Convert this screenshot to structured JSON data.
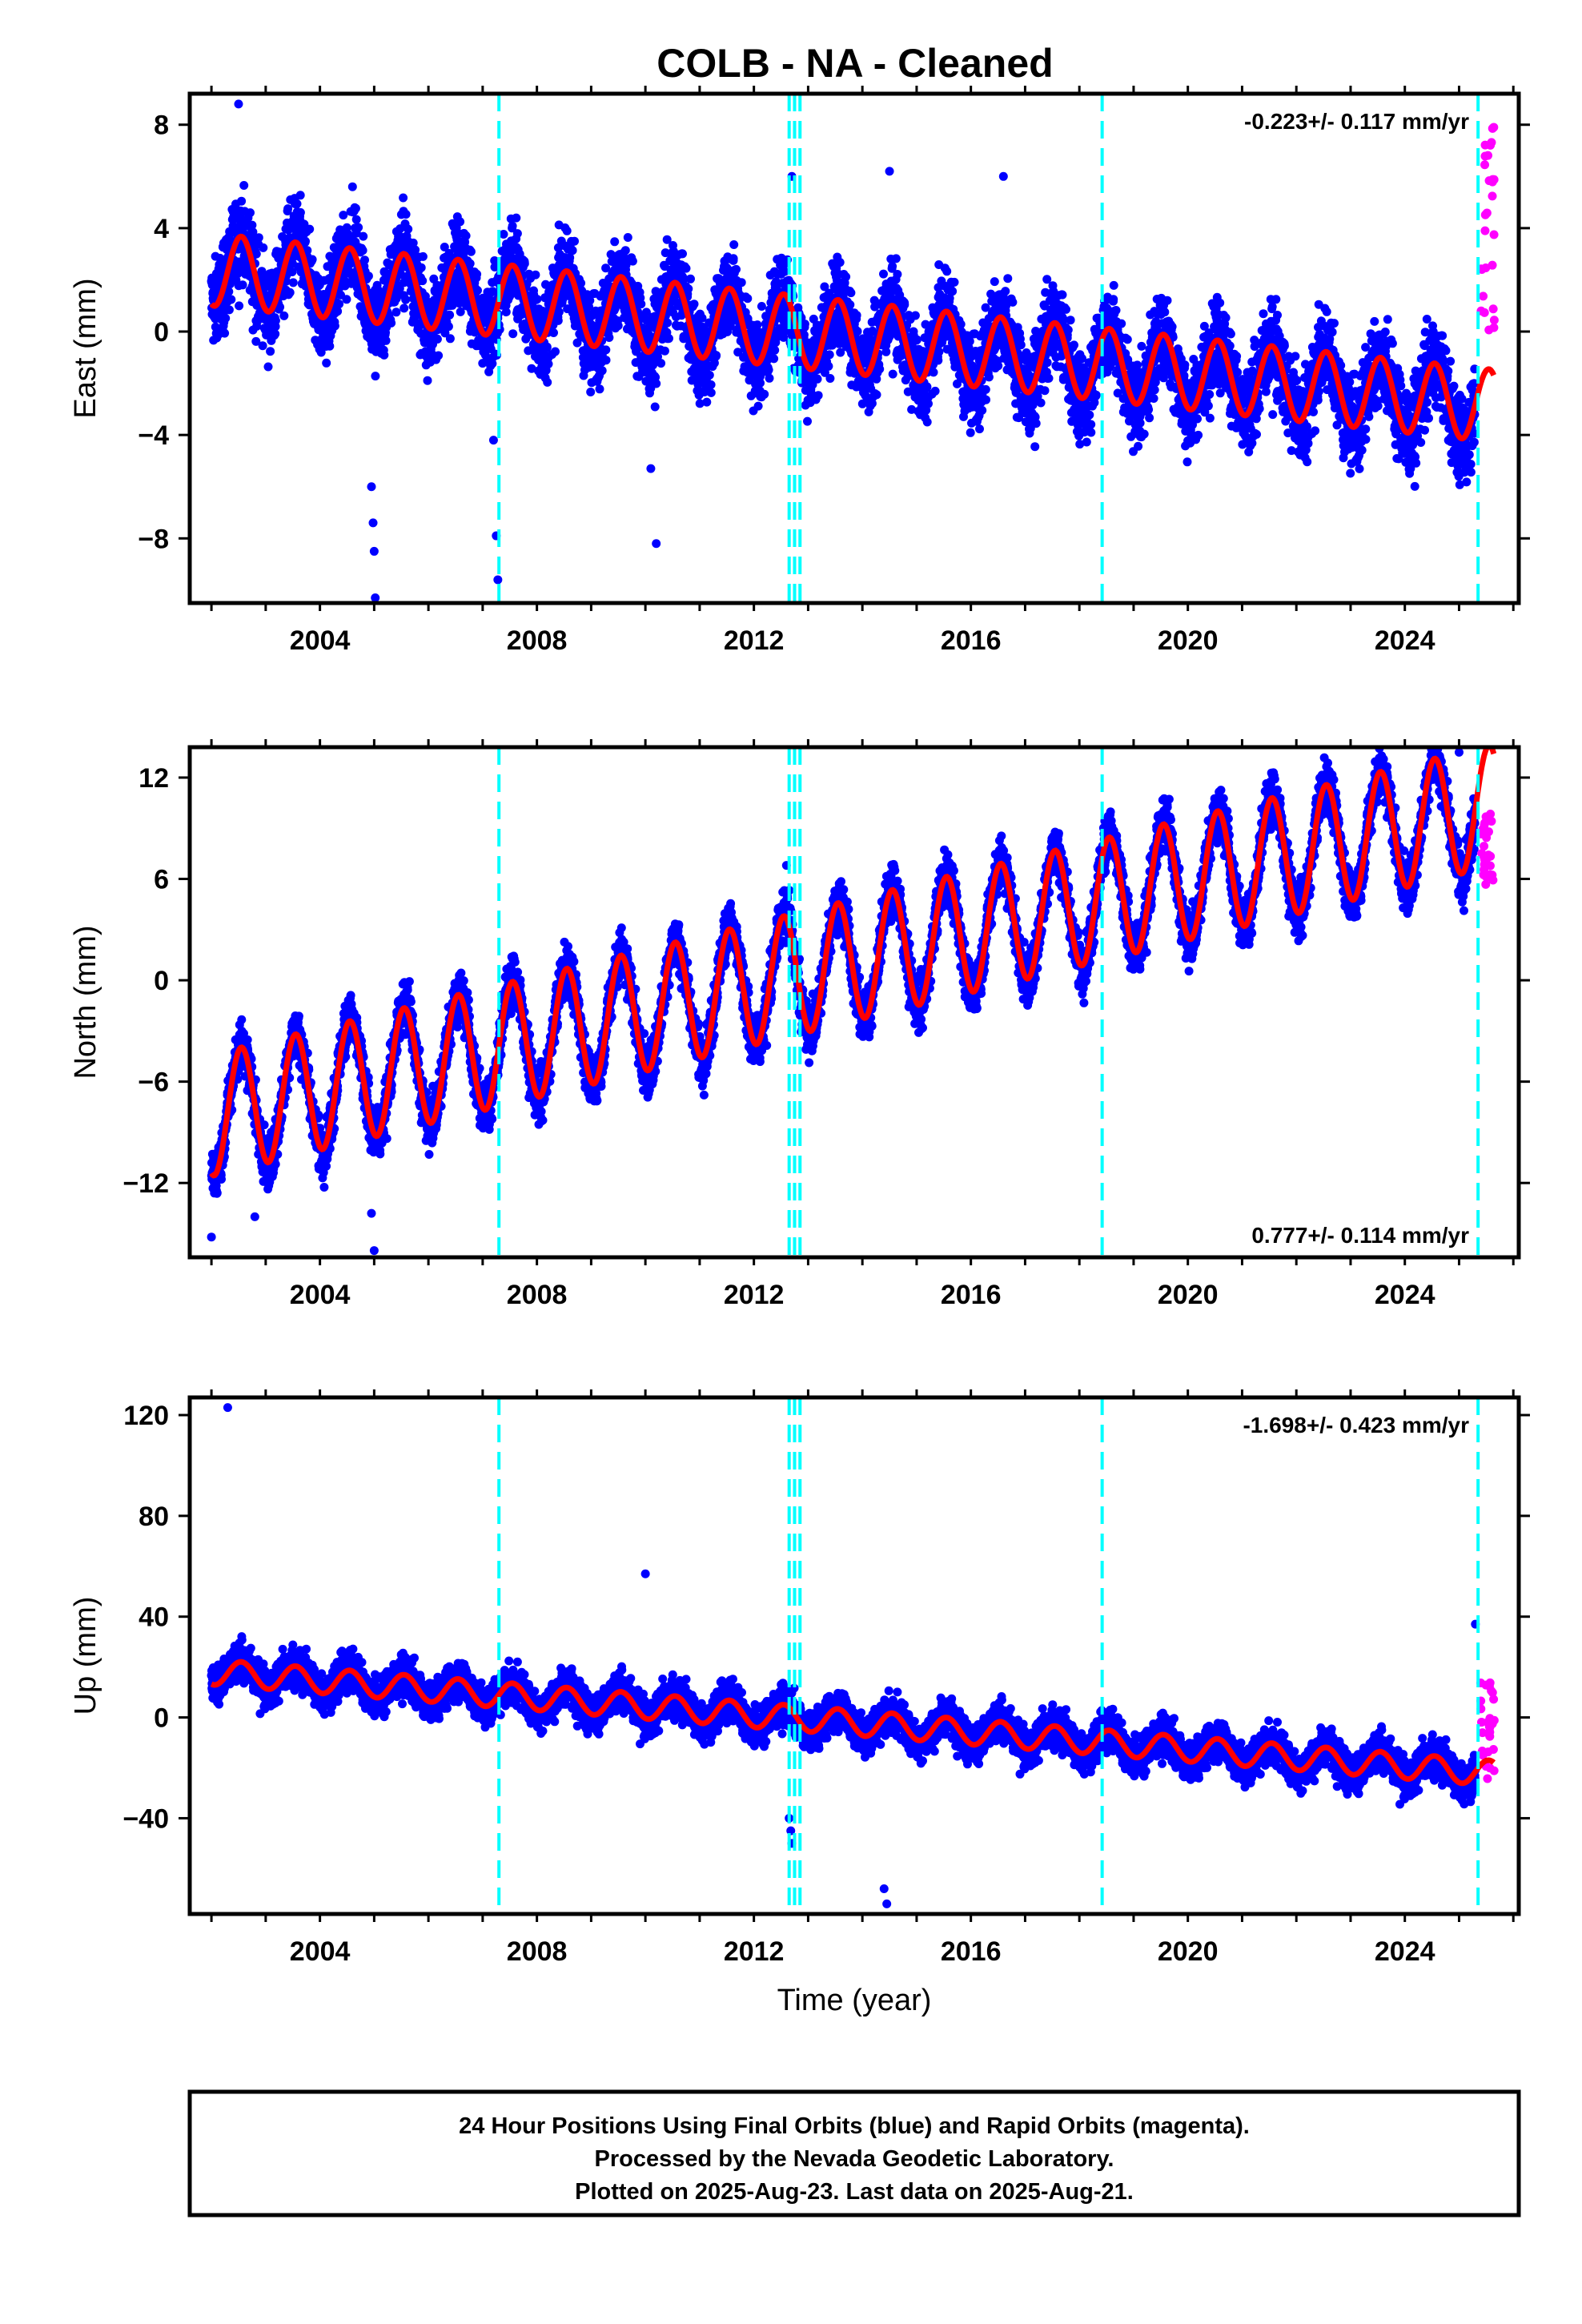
{
  "title": "COLB  - NA - Cleaned",
  "colors": {
    "final_orbits": "#0000ff",
    "rapid_orbits": "#ff00ff",
    "model_fit": "#ff0000",
    "event_lines": "#00ffff",
    "frame": "#000000"
  },
  "footer": {
    "line1": "24 Hour Positions Using Final Orbits (blue) and Rapid Orbits (magenta).",
    "line2": "Processed by the Nevada Geodetic Laboratory.",
    "line3": "Plotted on 2025-Aug-23. Last data on 2025-Aug-21."
  },
  "chart_data": [
    {
      "type": "scatter",
      "name": "east",
      "ylabel": "East (mm)",
      "xlabel": "",
      "rate_label": "-0.223+/- 0.117 mm/yr",
      "rate_position": "top-right",
      "xlim": [
        2001.6,
        2026.1
      ],
      "ylim": [
        -10.5,
        9.2
      ],
      "xticks": [
        2004,
        2008,
        2012,
        2016,
        2020,
        2024
      ],
      "yticks": [
        -8,
        -4,
        0,
        4,
        8
      ],
      "event_lines_x": [
        2007.3,
        2012.65,
        2012.75,
        2012.85,
        2018.42,
        2025.35
      ],
      "series": [
        {
          "marker": "dots",
          "color": "#0000ff",
          "x_range": [
            2002.0,
            2025.3
          ],
          "trend": {
            "start": 2.4,
            "rate_mm_per_yr": -0.223
          },
          "seasonal_amplitude": 1.4,
          "noise": 1.2
        },
        {
          "marker": "dots",
          "color": "#ff00ff",
          "x_range": [
            2025.4,
            2025.65
          ],
          "approx_y_range": [
            -0.5,
            8.0
          ]
        },
        {
          "marker": "line",
          "color": "#ff0000",
          "description_free": true
        }
      ],
      "outliers": [
        [
          2002.5,
          8.8
        ],
        [
          2004.95,
          -6.0
        ],
        [
          2004.98,
          -7.4
        ],
        [
          2005.0,
          -8.5
        ],
        [
          2005.02,
          -10.3
        ],
        [
          2007.2,
          -4.2
        ],
        [
          2007.25,
          -7.9
        ],
        [
          2007.28,
          -9.6
        ],
        [
          2010.1,
          -5.3
        ],
        [
          2010.2,
          -8.2
        ],
        [
          2012.7,
          6.0
        ],
        [
          2014.5,
          6.2
        ],
        [
          2016.6,
          6.0
        ]
      ]
    },
    {
      "type": "scatter",
      "name": "north",
      "ylabel": "North (mm)",
      "xlabel": "",
      "rate_label": "0.777+/- 0.114 mm/yr",
      "rate_position": "bottom-right",
      "xlim": [
        2001.6,
        2026.1
      ],
      "ylim": [
        -16.4,
        13.8
      ],
      "xticks": [
        2004,
        2008,
        2012,
        2016,
        2020,
        2024
      ],
      "yticks": [
        -12,
        -6,
        0,
        6,
        12
      ],
      "event_lines_x": [
        2007.3,
        2012.65,
        2012.75,
        2012.85,
        2018.42,
        2025.35
      ],
      "series": [
        {
          "marker": "dots",
          "color": "#0000ff",
          "x_range": [
            2002.0,
            2025.3
          ],
          "trend": {
            "start": -8.0,
            "rate_mm_per_yr": 0.777
          },
          "seasonal_amplitude": 3.6,
          "noise": 1.1
        },
        {
          "marker": "dots",
          "color": "#ff00ff",
          "x_range": [
            2025.4,
            2025.65
          ],
          "approx_y_range": [
            5.5,
            10.5
          ]
        },
        {
          "marker": "line",
          "color": "#ff0000"
        }
      ],
      "outliers": [
        [
          2002.0,
          -15.2
        ],
        [
          2002.8,
          -14.0
        ],
        [
          2004.95,
          -13.8
        ],
        [
          2005.0,
          -16.0
        ],
        [
          2012.6,
          6.8
        ],
        [
          2025.0,
          13.5
        ]
      ]
    },
    {
      "type": "scatter",
      "name": "up",
      "ylabel": "Up (mm)",
      "xlabel": "Time (year)",
      "rate_label": "-1.698+/- 0.423 mm/yr",
      "rate_position": "top-right",
      "xlim": [
        2001.6,
        2026.1
      ],
      "ylim": [
        -78,
        127
      ],
      "xticks": [
        2004,
        2008,
        2012,
        2016,
        2020,
        2024
      ],
      "yticks": [
        -40,
        0,
        40,
        80,
        120
      ],
      "event_lines_x": [
        2007.3,
        2012.65,
        2012.75,
        2012.85,
        2018.42,
        2025.35
      ],
      "series": [
        {
          "marker": "dots",
          "color": "#0000ff",
          "x_range": [
            2002.0,
            2025.3
          ],
          "trend": {
            "start": 18.0,
            "rate_mm_per_yr": -1.698
          },
          "seasonal_amplitude": 5.0,
          "noise": 5.5
        },
        {
          "marker": "dots",
          "color": "#ff00ff",
          "x_range": [
            2025.4,
            2025.65
          ],
          "approx_y_range": [
            -26,
            14
          ]
        },
        {
          "marker": "line",
          "color": "#ff0000"
        }
      ],
      "outliers": [
        [
          2002.3,
          123.0
        ],
        [
          2010.0,
          57.0
        ],
        [
          2012.65,
          -40.0
        ],
        [
          2012.68,
          -45.0
        ],
        [
          2012.7,
          -50.0
        ],
        [
          2014.4,
          -68.0
        ],
        [
          2014.45,
          -74.0
        ],
        [
          2025.3,
          37.0
        ]
      ]
    }
  ]
}
